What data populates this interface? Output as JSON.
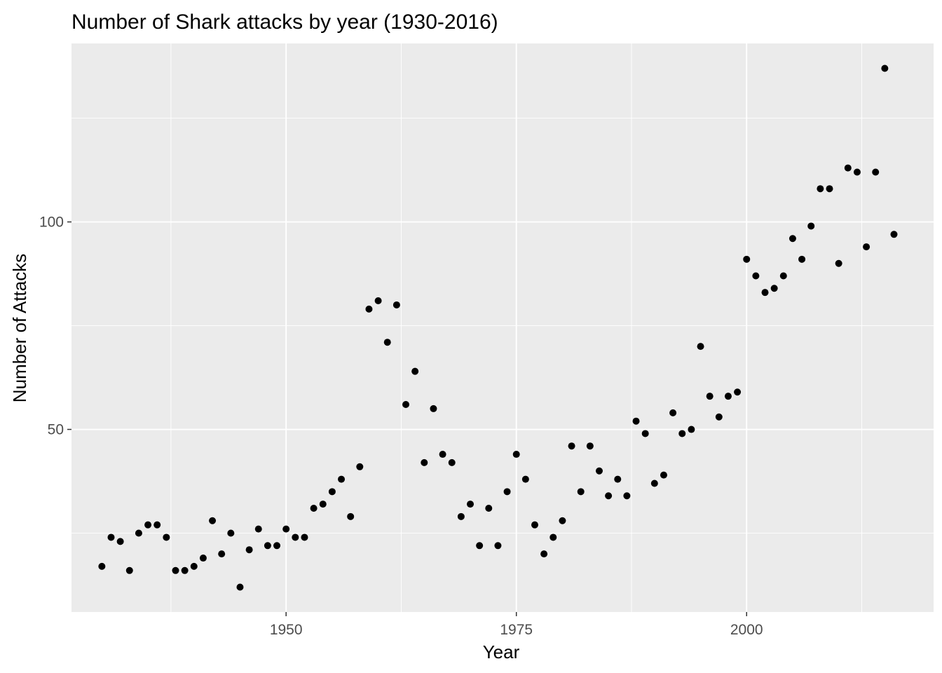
{
  "chart_data": {
    "type": "scatter",
    "title": "Number of Shark attacks by year (1930-2016)",
    "xlabel": "Year",
    "ylabel": "Number of Attacks",
    "xlim": [
      1926.7,
      2020.3
    ],
    "ylim": [
      6.0,
      143.0
    ],
    "x_ticks": [
      1950,
      1975,
      2000
    ],
    "x_tick_labels": [
      "1950",
      "1975",
      "2000"
    ],
    "y_ticks": [
      50,
      100
    ],
    "y_tick_labels": [
      "50",
      "100"
    ],
    "grid": true,
    "colors": {
      "panel": "#ebebeb",
      "grid": "#ffffff",
      "point": "#000000"
    },
    "points": [
      [
        1930,
        17
      ],
      [
        1931,
        24
      ],
      [
        1932,
        23
      ],
      [
        1933,
        16
      ],
      [
        1934,
        25
      ],
      [
        1935,
        27
      ],
      [
        1936,
        27
      ],
      [
        1937,
        24
      ],
      [
        1938,
        16
      ],
      [
        1939,
        16
      ],
      [
        1940,
        17
      ],
      [
        1941,
        19
      ],
      [
        1942,
        28
      ],
      [
        1943,
        20
      ],
      [
        1944,
        25
      ],
      [
        1945,
        12
      ],
      [
        1946,
        21
      ],
      [
        1947,
        26
      ],
      [
        1948,
        22
      ],
      [
        1949,
        22
      ],
      [
        1950,
        26
      ],
      [
        1951,
        24
      ],
      [
        1952,
        24
      ],
      [
        1953,
        31
      ],
      [
        1954,
        32
      ],
      [
        1955,
        35
      ],
      [
        1956,
        38
      ],
      [
        1957,
        29
      ],
      [
        1958,
        41
      ],
      [
        1959,
        79
      ],
      [
        1960,
        81
      ],
      [
        1961,
        71
      ],
      [
        1962,
        80
      ],
      [
        1963,
        56
      ],
      [
        1964,
        64
      ],
      [
        1965,
        42
      ],
      [
        1966,
        55
      ],
      [
        1967,
        44
      ],
      [
        1968,
        42
      ],
      [
        1969,
        29
      ],
      [
        1970,
        32
      ],
      [
        1971,
        22
      ],
      [
        1972,
        31
      ],
      [
        1973,
        22
      ],
      [
        1974,
        35
      ],
      [
        1975,
        44
      ],
      [
        1976,
        38
      ],
      [
        1977,
        27
      ],
      [
        1978,
        20
      ],
      [
        1979,
        24
      ],
      [
        1980,
        28
      ],
      [
        1981,
        46
      ],
      [
        1982,
        35
      ],
      [
        1983,
        46
      ],
      [
        1984,
        40
      ],
      [
        1985,
        34
      ],
      [
        1986,
        38
      ],
      [
        1987,
        34
      ],
      [
        1988,
        52
      ],
      [
        1989,
        49
      ],
      [
        1990,
        37
      ],
      [
        1991,
        39
      ],
      [
        1992,
        54
      ],
      [
        1993,
        49
      ],
      [
        1994,
        50
      ],
      [
        1995,
        70
      ],
      [
        1996,
        58
      ],
      [
        1997,
        53
      ],
      [
        1998,
        58
      ],
      [
        1999,
        59
      ],
      [
        2000,
        91
      ],
      [
        2001,
        87
      ],
      [
        2002,
        83
      ],
      [
        2003,
        84
      ],
      [
        2004,
        87
      ],
      [
        2005,
        96
      ],
      [
        2006,
        91
      ],
      [
        2007,
        99
      ],
      [
        2008,
        108
      ],
      [
        2009,
        108
      ],
      [
        2010,
        90
      ],
      [
        2011,
        113
      ],
      [
        2012,
        112
      ],
      [
        2013,
        94
      ],
      [
        2014,
        112
      ],
      [
        2015,
        137
      ],
      [
        2016,
        97
      ]
    ]
  }
}
